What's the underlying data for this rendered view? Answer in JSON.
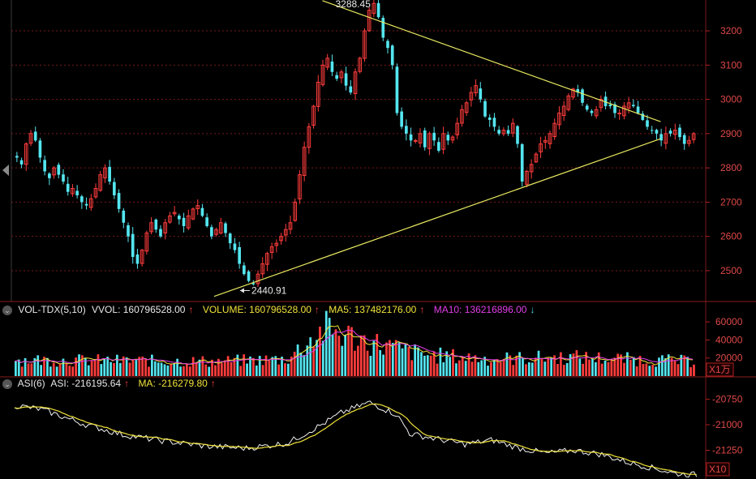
{
  "chart_data": [
    {
      "type": "candlestick",
      "title": "",
      "ylim": [
        2410,
        3290
      ],
      "yticks": [
        2500,
        2600,
        2700,
        2800,
        2900,
        3000,
        3100,
        3200
      ],
      "colors": {
        "up": "#ff3c3c",
        "down": "#54e6f0",
        "trendline": "#e8e860",
        "grid": "#7a1818"
      },
      "annotations": {
        "high_label": "3288.45",
        "low_label": "2440.91"
      },
      "trendlines": [
        {
          "from": [
            0.448,
            3288
          ],
          "to": [
            0.935,
            2935
          ]
        },
        {
          "from": [
            0.292,
            2425
          ],
          "to": [
            0.935,
            2885
          ]
        }
      ],
      "closes": [
        2830,
        2810,
        2870,
        2900,
        2880,
        2830,
        2790,
        2770,
        2800,
        2780,
        2760,
        2730,
        2740,
        2720,
        2700,
        2690,
        2710,
        2740,
        2780,
        2800,
        2760,
        2720,
        2680,
        2640,
        2600,
        2540,
        2520,
        2560,
        2610,
        2640,
        2620,
        2600,
        2640,
        2660,
        2670,
        2650,
        2630,
        2660,
        2680,
        2690,
        2660,
        2630,
        2600,
        2620,
        2640,
        2610,
        2580,
        2560,
        2520,
        2490,
        2470,
        2460,
        2490,
        2520,
        2550,
        2570,
        2580,
        2600,
        2620,
        2640,
        2700,
        2780,
        2860,
        2920,
        2980,
        3050,
        3100,
        3120,
        3080,
        3060,
        3080,
        3040,
        3020,
        3080,
        3120,
        3200,
        3260,
        3280,
        3240,
        3180,
        3150,
        3100,
        2960,
        2920,
        2900,
        2880,
        2880,
        2900,
        2860,
        2900,
        2880,
        2850,
        2900,
        2880,
        2890,
        2930,
        2970,
        2990,
        3020,
        3040,
        3000,
        2950,
        2940,
        2920,
        2900,
        2910,
        2900,
        2930,
        2870,
        2760,
        2790,
        2810,
        2840,
        2870,
        2880,
        2900,
        2930,
        2960,
        2980,
        3010,
        3030,
        3020,
        2990,
        2970,
        2960,
        2970,
        3000,
        2980,
        2980,
        2960,
        2960,
        2980,
        2990,
        2980,
        2960,
        2940,
        2920,
        2910,
        2900,
        2880,
        2900,
        2900,
        2910,
        2890,
        2870,
        2880,
        2900
      ]
    },
    {
      "type": "bar",
      "name": "VOL-TDX(5,10)",
      "unit": "X1万",
      "ylim": [
        0,
        70000
      ],
      "yticks": [
        20000,
        40000,
        60000
      ],
      "stats": [
        {
          "label": "VVOL: 160796528.00",
          "arrow": "↑",
          "color": "white"
        },
        {
          "label": "VOLUME: 160796528.00",
          "arrow": "↑",
          "color": "yellow"
        },
        {
          "label": "MA5: 137482176.00",
          "arrow": "↑",
          "color": "yellow"
        },
        {
          "label": "MA10: 136216896.00",
          "arrow": "↓",
          "color": "magenta"
        }
      ],
      "volume_profile": [
        [
          0,
          19000
        ],
        [
          0.3,
          17000
        ],
        [
          0.4,
          20000
        ],
        [
          0.455,
          55000
        ],
        [
          0.52,
          40000
        ],
        [
          0.6,
          25000
        ],
        [
          0.7,
          20000
        ],
        [
          0.82,
          22000
        ],
        [
          1,
          17000
        ]
      ]
    },
    {
      "type": "line",
      "name": "ASI(6)",
      "unit": "X10",
      "ylim": [
        -21500,
        -20650
      ],
      "yticks": [
        -20750,
        -21000,
        -21250
      ],
      "stats": [
        {
          "label": "ASI: -216195.64",
          "arrow": "↑",
          "color": "white"
        },
        {
          "label": "MA: -216279.80",
          "arrow": "↑",
          "color": "yellow"
        }
      ],
      "asi_profile": [
        [
          0,
          -20810
        ],
        [
          0.04,
          -20850
        ],
        [
          0.1,
          -20990
        ],
        [
          0.16,
          -21100
        ],
        [
          0.22,
          -21160
        ],
        [
          0.28,
          -21210
        ],
        [
          0.34,
          -21230
        ],
        [
          0.4,
          -21180
        ],
        [
          0.45,
          -21000
        ],
        [
          0.48,
          -20880
        ],
        [
          0.52,
          -20780
        ],
        [
          0.56,
          -20900
        ],
        [
          0.58,
          -21090
        ],
        [
          0.62,
          -21140
        ],
        [
          0.66,
          -21190
        ],
        [
          0.7,
          -21150
        ],
        [
          0.74,
          -21230
        ],
        [
          0.78,
          -21280
        ],
        [
          0.82,
          -21250
        ],
        [
          0.86,
          -21290
        ],
        [
          0.9,
          -21370
        ],
        [
          0.94,
          -21430
        ],
        [
          0.97,
          -21480
        ],
        [
          1,
          -21490
        ]
      ]
    }
  ]
}
